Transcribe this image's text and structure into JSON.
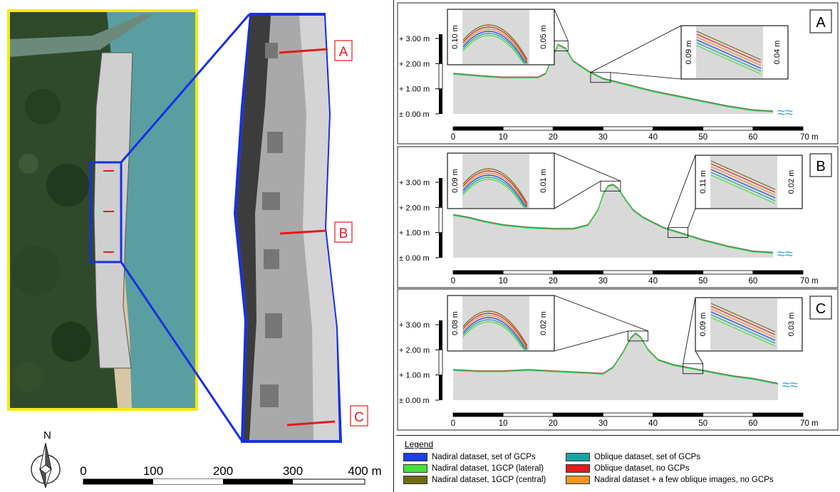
{
  "map": {
    "profile_markers": [
      "A",
      "B",
      "C"
    ],
    "scale": {
      "ticks": [
        "0",
        "100",
        "200",
        "300",
        "400 m"
      ]
    },
    "north_label": "N"
  },
  "colors": {
    "nadiral_set": "#1f3fe0",
    "nadiral_lateral": "#44e23a",
    "nadiral_central": "#6f6a12",
    "oblique_set": "#18a3a3",
    "oblique_none": "#e41a1c",
    "nadiral_oblique": "#f29422",
    "sand": "#d9d9d9"
  },
  "chart_data": [
    {
      "type": "line",
      "id": "A",
      "x_ticks": [
        "0",
        "10",
        "20",
        "30",
        "40",
        "50",
        "60",
        "70 m"
      ],
      "y_ticks": [
        "+ 3.00 m",
        "+ 2.00 m",
        "+ 1.00 m",
        "± 0.00 m"
      ],
      "xlim": [
        0,
        70
      ],
      "ylim": [
        0,
        3.0
      ],
      "profile": {
        "x": [
          0,
          3,
          6,
          10,
          14,
          17,
          18.5,
          20,
          21,
          22.5,
          24,
          27,
          30,
          35,
          40,
          45,
          50,
          55,
          60,
          64
        ],
        "y": [
          1.6,
          1.55,
          1.5,
          1.45,
          1.45,
          1.45,
          1.6,
          2.3,
          2.75,
          2.6,
          2.1,
          1.7,
          1.4,
          1.15,
          0.9,
          0.7,
          0.5,
          0.3,
          0.15,
          0.1
        ]
      },
      "inset_labels": [
        {
          "text": "0.10 m",
          "side": "left"
        },
        {
          "text": "0.05 m",
          "side": "right"
        },
        {
          "text": "0.09 m",
          "side": "left"
        },
        {
          "text": "0.04 m",
          "side": "right"
        }
      ]
    },
    {
      "type": "line",
      "id": "B",
      "x_ticks": [
        "0",
        "10",
        "20",
        "30",
        "40",
        "50",
        "60",
        "70 m"
      ],
      "y_ticks": [
        "+ 3.00 m",
        "+ 2.00 m",
        "+ 1.00 m",
        "± 0.00 m"
      ],
      "xlim": [
        0,
        70
      ],
      "ylim": [
        0,
        3.0
      ],
      "profile": {
        "x": [
          0,
          3,
          6,
          10,
          15,
          20,
          24,
          27,
          29,
          30,
          31,
          32,
          33,
          34.5,
          36,
          38,
          42,
          46,
          50,
          55,
          60,
          64
        ],
        "y": [
          1.7,
          1.6,
          1.45,
          1.3,
          1.2,
          1.15,
          1.15,
          1.3,
          1.9,
          2.5,
          2.85,
          2.9,
          2.75,
          2.3,
          1.9,
          1.6,
          1.2,
          0.95,
          0.7,
          0.45,
          0.25,
          0.2
        ]
      },
      "inset_labels": [
        {
          "text": "0.09 m",
          "side": "left"
        },
        {
          "text": "0.01 m",
          "side": "right"
        },
        {
          "text": "0.11 m",
          "side": "left"
        },
        {
          "text": "0.02 m",
          "side": "right"
        }
      ]
    },
    {
      "type": "line",
      "id": "C",
      "x_ticks": [
        "0",
        "10",
        "20",
        "30",
        "40",
        "50",
        "60",
        "70 m"
      ],
      "y_ticks": [
        "+ 3.00 m",
        "+ 2.00 m",
        "+ 1.00 m",
        "± 0.00 m"
      ],
      "xlim": [
        0,
        70
      ],
      "ylim": [
        0,
        3.0
      ],
      "profile": {
        "x": [
          0,
          5,
          10,
          15,
          20,
          25,
          30,
          32,
          34,
          35.5,
          36.5,
          37.5,
          39,
          41,
          44,
          48,
          52,
          56,
          60,
          65
        ],
        "y": [
          1.2,
          1.15,
          1.15,
          1.2,
          1.15,
          1.1,
          1.05,
          1.3,
          1.9,
          2.45,
          2.65,
          2.5,
          2.0,
          1.6,
          1.4,
          1.25,
          1.1,
          0.95,
          0.85,
          0.65
        ]
      },
      "inset_labels": [
        {
          "text": "0.08 m",
          "side": "left"
        },
        {
          "text": "0.02 m",
          "side": "right"
        },
        {
          "text": "0.09 m",
          "side": "left"
        },
        {
          "text": "0.03 m",
          "side": "right"
        }
      ]
    }
  ],
  "legend": {
    "title": "Legend",
    "items": [
      {
        "label": "Nadiral dataset, set of GCPs",
        "color": "#1f3fe0"
      },
      {
        "label": "Nadiral dataset, 1GCP (lateral)",
        "color": "#44e23a"
      },
      {
        "label": "Nadiral dataset, 1GCP (central)",
        "color": "#6f6a12"
      },
      {
        "label": "Oblique dataset, set of GCPs",
        "color": "#18a3a3"
      },
      {
        "label": "Oblique dataset, no GCPs",
        "color": "#e41a1c"
      },
      {
        "label": "Nadiral dataset + a few oblique images, no GCPs",
        "color": "#f29422"
      }
    ]
  }
}
